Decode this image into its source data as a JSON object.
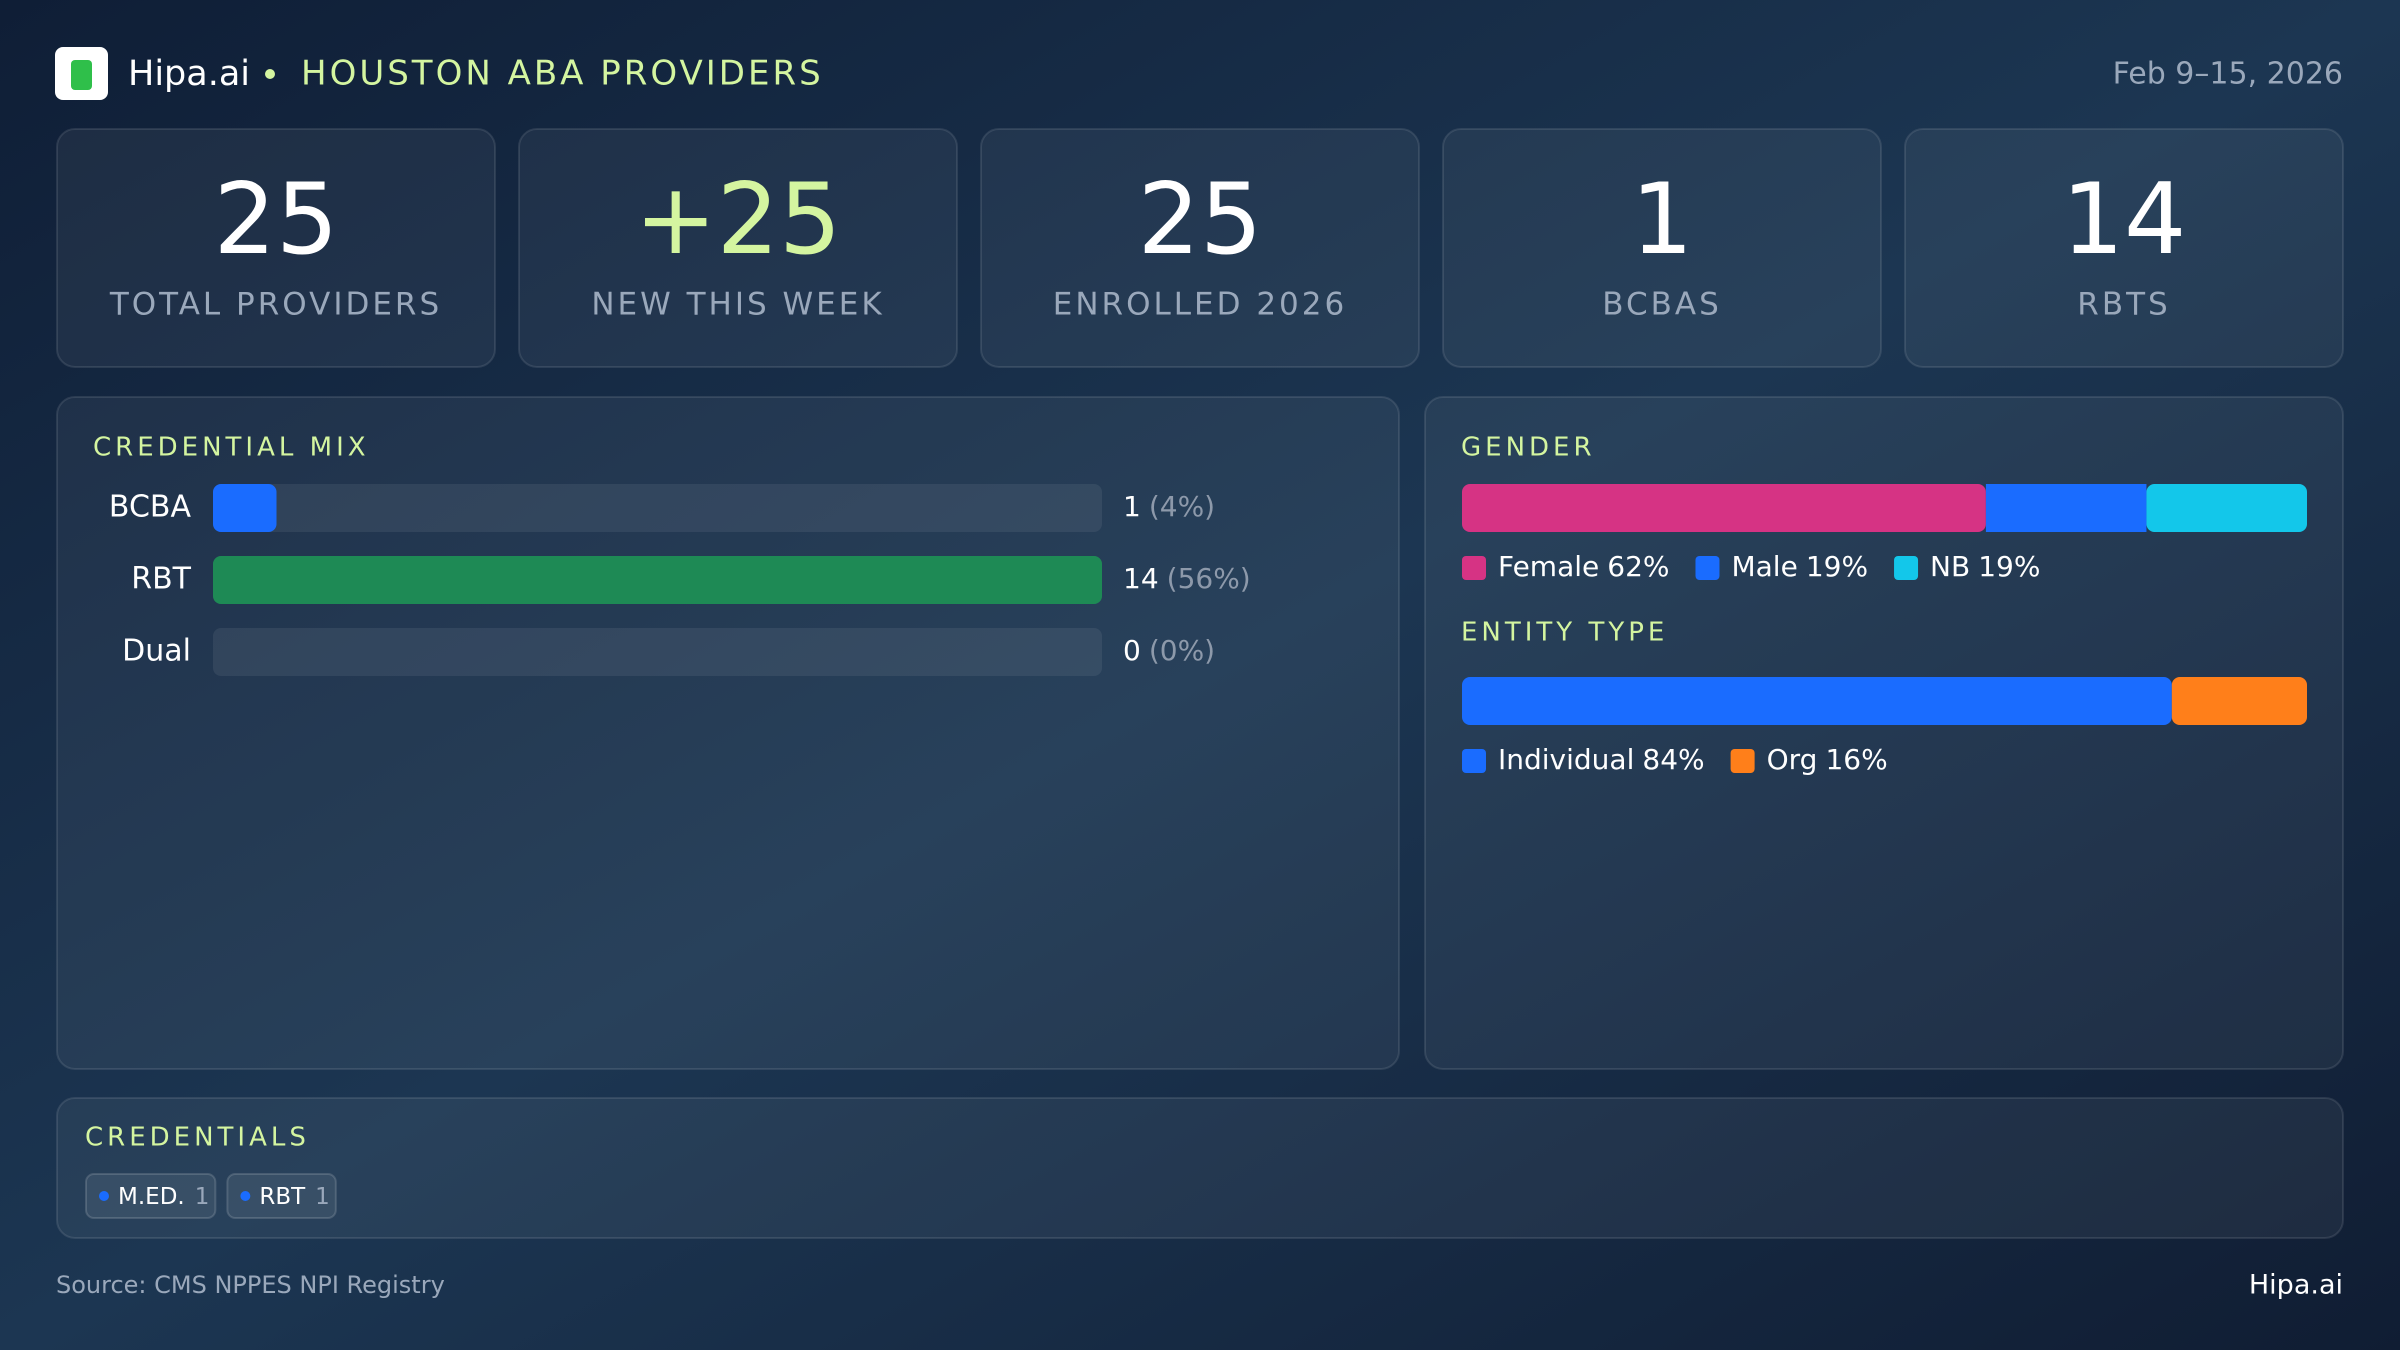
{
  "header": {
    "brand": "Hipa.ai",
    "title": "HOUSTON ABA PROVIDERS",
    "date": "Feb 9–15, 2026"
  },
  "kpis": [
    {
      "value": "25",
      "label": "TOTAL PROVIDERS"
    },
    {
      "value": "+25",
      "label": "NEW THIS WEEK"
    },
    {
      "value": "25",
      "label": "ENROLLED 2026"
    },
    {
      "value": "1",
      "label": "BCBAS"
    },
    {
      "value": "14",
      "label": "RBTS"
    }
  ],
  "credential_mix": {
    "type": "bar",
    "title": "CREDENTIAL MIX",
    "categories": [
      "BCBA",
      "RBT",
      "Dual"
    ],
    "values": [
      1,
      14,
      0
    ],
    "percent_labels": [
      "(4%)",
      "(56%)",
      "(0%)"
    ],
    "colors": [
      "#1a6cff",
      "#1e8a55",
      "#6f42c1"
    ],
    "xlim": [
      0,
      14
    ]
  },
  "gender": {
    "type": "stacked-bar",
    "title": "GENDER",
    "series": [
      {
        "name": "Female",
        "color": "#d63384",
        "value": 62,
        "value_label": "62%"
      },
      {
        "name": "Male",
        "color": "#1a6cff",
        "value": 19,
        "value_label": "19%"
      },
      {
        "name": "NB",
        "color": "#13c7ea",
        "value": 19,
        "value_label": "19%"
      }
    ]
  },
  "entity_type": {
    "type": "stacked-bar",
    "title": "ENTITY TYPE",
    "series": [
      {
        "name": "Individual",
        "color": "#1a6cff",
        "value": 84,
        "value_label": "84%"
      },
      {
        "name": "Org",
        "color": "#ff7f1a",
        "value": 16,
        "value_label": "16%"
      }
    ]
  },
  "credentials": {
    "title": "CREDENTIALS",
    "items": [
      {
        "name": "M.ED.",
        "count": 1
      },
      {
        "name": "RBT",
        "count": 1
      }
    ]
  },
  "footer": {
    "source": "Source: CMS NPPES NPI Registry",
    "brand": "Hipa.ai"
  }
}
